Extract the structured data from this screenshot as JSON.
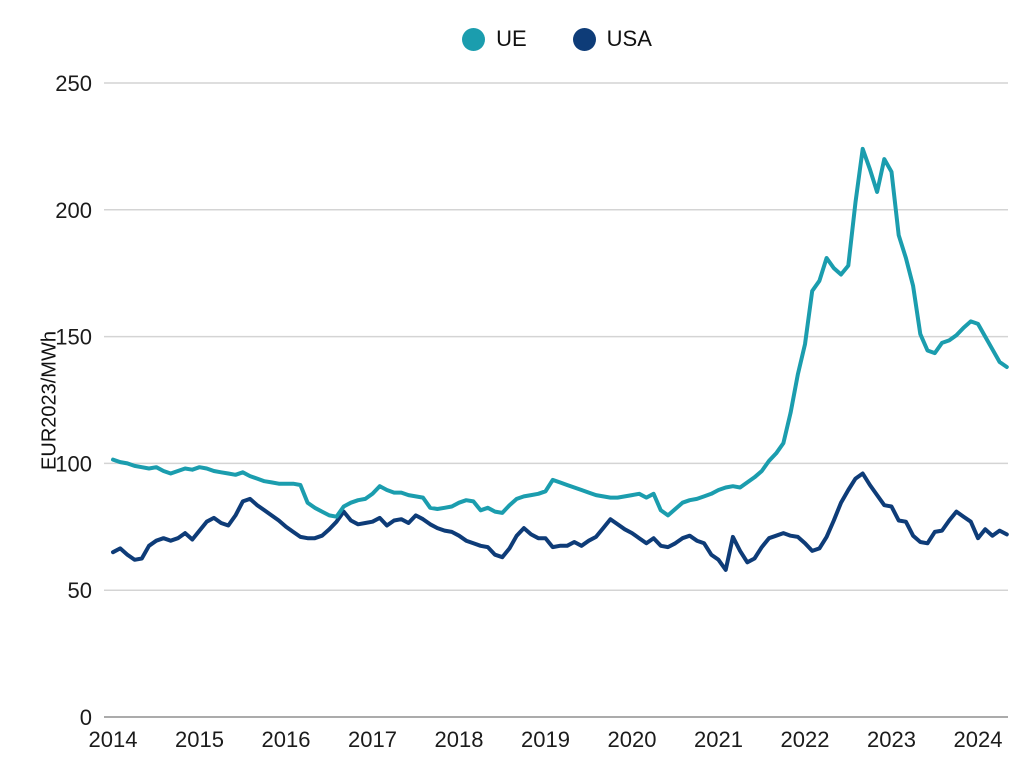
{
  "legend": {
    "items": [
      {
        "label": "UE",
        "color": "#1B9DAE"
      },
      {
        "label": "USA",
        "color": "#0E3C78"
      }
    ]
  },
  "chart_data": {
    "type": "line",
    "title": "",
    "xlabel": "",
    "ylabel": "EUR2023/MWh",
    "ylim": [
      0,
      250
    ],
    "y_ticks": [
      0,
      50,
      100,
      150,
      200,
      250
    ],
    "x_ticks": [
      2014,
      2015,
      2016,
      2017,
      2018,
      2019,
      2020,
      2021,
      2022,
      2023,
      2024
    ],
    "x_start": "2014-01",
    "x_end": "2024-05",
    "frequency": "monthly",
    "grid": "horizontal",
    "legend_position": "top-center",
    "grid_color": "#d4d4d4",
    "zero_line_color": "#ababab",
    "series": [
      {
        "name": "UE",
        "color": "#1B9DAE",
        "values": [
          101.5,
          100.5,
          100,
          99,
          98.5,
          98,
          98.5,
          97,
          96,
          97,
          98,
          97.5,
          98.5,
          98,
          97,
          96.5,
          96,
          95.5,
          96.5,
          95,
          94,
          93,
          92.5,
          92,
          92,
          92,
          91.5,
          84.5,
          82.5,
          81,
          79.5,
          79,
          83,
          84.5,
          85.5,
          86,
          88,
          91,
          89.5,
          88.5,
          88.5,
          87.5,
          87,
          86.5,
          82.5,
          82,
          82.5,
          83,
          84.5,
          85.5,
          85,
          81.5,
          82.5,
          81,
          80.5,
          83.5,
          86,
          87,
          87.5,
          88,
          89,
          93.5,
          92.5,
          91.5,
          90.5,
          89.5,
          88.5,
          87.5,
          87,
          86.5,
          86.5,
          87,
          87.5,
          88,
          86.5,
          88,
          81.5,
          79.5,
          82,
          84.5,
          85.5,
          86,
          87,
          88,
          89.5,
          90.5,
          91,
          90.5,
          92.5,
          94.5,
          97,
          101,
          104,
          108,
          120,
          135,
          147,
          168,
          172,
          181,
          177,
          174.5,
          178,
          203,
          224,
          216,
          207,
          220,
          215,
          190,
          181,
          170,
          151,
          144.5,
          143.5,
          147.5,
          148.5,
          150.5,
          153.5,
          156,
          155,
          150,
          145,
          140,
          138
        ]
      },
      {
        "name": "USA",
        "color": "#0E3C78",
        "values": [
          65,
          66.5,
          64,
          62,
          62.5,
          67.5,
          69.5,
          70.5,
          69.5,
          70.5,
          72.5,
          70,
          73.5,
          77,
          78.5,
          76.5,
          75.5,
          79.5,
          85,
          86,
          83.5,
          81.5,
          79.5,
          77.5,
          75,
          73,
          71,
          70.5,
          70.5,
          71.5,
          74,
          77,
          81,
          77.5,
          76,
          76.5,
          77,
          78.5,
          75.5,
          77.5,
          78,
          76.5,
          79.5,
          78,
          76,
          74.5,
          73.5,
          73,
          71.5,
          69.5,
          68.5,
          67.5,
          67,
          64,
          63,
          66.5,
          71.5,
          74.5,
          72,
          70.5,
          70.5,
          67,
          67.5,
          67.5,
          69,
          67.5,
          69.5,
          71,
          74.5,
          78,
          76,
          74,
          72.5,
          70.5,
          68.5,
          70.5,
          67.5,
          67,
          68.5,
          70.5,
          71.5,
          69.5,
          68.5,
          64,
          62,
          58,
          71,
          65.5,
          61,
          62.5,
          67,
          70.5,
          71.5,
          72.5,
          71.5,
          71,
          68.5,
          65.5,
          66.5,
          71,
          77.5,
          84.5,
          89.5,
          94,
          96,
          91.5,
          87.5,
          83.5,
          83,
          77.5,
          77,
          71.5,
          69,
          68.5,
          73,
          73.5,
          77.5,
          81,
          79,
          77,
          70.5,
          74,
          71.5,
          73.5,
          72
        ]
      }
    ]
  }
}
